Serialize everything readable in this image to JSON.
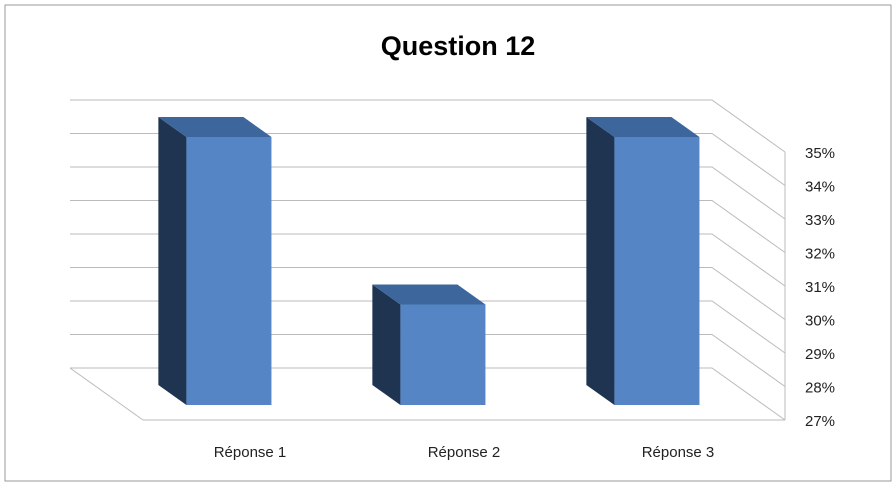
{
  "chart_data": {
    "type": "bar3d",
    "title": "Question 12",
    "categories": [
      "Réponse 1",
      "Réponse 2",
      "Réponse 3"
    ],
    "values": [
      35,
      30,
      35
    ],
    "color": "#5585c5",
    "ylim": [
      27,
      35
    ],
    "yticks": [
      {
        "value": 27,
        "label": "27%"
      },
      {
        "value": 28,
        "label": "28%"
      },
      {
        "value": 29,
        "label": "29%"
      },
      {
        "value": 30,
        "label": "30%"
      },
      {
        "value": 31,
        "label": "31%"
      },
      {
        "value": 32,
        "label": "32%"
      },
      {
        "value": 33,
        "label": "33%"
      },
      {
        "value": 34,
        "label": "34%"
      },
      {
        "value": 35,
        "label": "35%"
      }
    ],
    "grid": true
  }
}
